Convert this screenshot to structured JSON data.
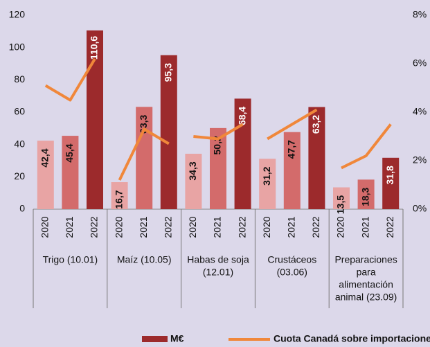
{
  "chart_data": {
    "type": "bar",
    "categories": [
      "2020",
      "2021",
      "2022",
      "2020",
      "2021",
      "2022",
      "2020",
      "2021",
      "2022",
      "2020",
      "2021",
      "2022",
      "2020",
      "2021",
      "2022"
    ],
    "groups": [
      {
        "lines": [
          "Trigo (10.01)"
        ]
      },
      {
        "lines": [
          "Maíz (10.05)"
        ]
      },
      {
        "lines": [
          "Habas de soja",
          "(12.01)"
        ]
      },
      {
        "lines": [
          "Crustáceos",
          "(03.06)"
        ]
      },
      {
        "lines": [
          "Preparaciones",
          "para",
          "alimentación",
          "animal  (23.09)"
        ]
      }
    ],
    "series": [
      {
        "name": "M€",
        "color": "#9c2a2c",
        "colors": [
          "#e8a4a4",
          "#d36b6b",
          "#9c2a2c",
          "#e8a4a4",
          "#d36b6b",
          "#9c2a2c",
          "#e8a4a4",
          "#d36b6b",
          "#9c2a2c",
          "#e8a4a4",
          "#d36b6b",
          "#9c2a2c",
          "#e8a4a4",
          "#d36b6b",
          "#9c2a2c"
        ],
        "values": [
          42.4,
          45.4,
          110.6,
          16.7,
          63.3,
          95.3,
          34.3,
          50.2,
          68.4,
          31.2,
          47.7,
          63.2,
          13.5,
          18.3,
          31.8
        ],
        "value_labels": [
          "42,4",
          "45,4",
          "110,6",
          "16,7",
          "63,3",
          "95,3",
          "34,3",
          "50,2",
          "68,4",
          "31,2",
          "47,7",
          "63,2",
          "13,5",
          "18,3",
          "31,8"
        ]
      },
      {
        "name": "Cuota Canadá sobre importaciones España",
        "color": "#f0873a",
        "axis": "y2",
        "type": "line",
        "values": [
          5.1,
          4.5,
          6.2,
          1.2,
          3.3,
          2.7,
          3.0,
          2.9,
          3.5,
          2.9,
          3.5,
          4.1,
          1.7,
          2.2,
          3.5
        ]
      }
    ],
    "ylim": [
      0,
      120
    ],
    "yticks": [
      0,
      20,
      40,
      60,
      80,
      100,
      120
    ],
    "y2lim": [
      0,
      8
    ],
    "y2ticks": [
      {
        "value": 0,
        "label": "0%"
      },
      {
        "value": 2,
        "label": "2%"
      },
      {
        "value": 4,
        "label": "4%"
      },
      {
        "value": 6,
        "label": "6%"
      },
      {
        "value": 8,
        "label": "8%"
      }
    ]
  }
}
